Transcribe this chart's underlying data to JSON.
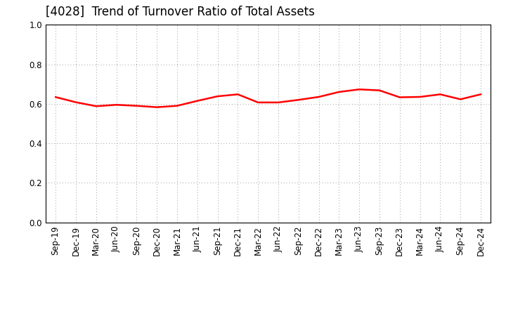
{
  "title": "[4028]  Trend of Turnover Ratio of Total Assets",
  "x_labels": [
    "Sep-19",
    "Dec-19",
    "Mar-20",
    "Jun-20",
    "Sep-20",
    "Dec-20",
    "Mar-21",
    "Jun-21",
    "Sep-21",
    "Dec-21",
    "Mar-22",
    "Jun-22",
    "Sep-22",
    "Dec-22",
    "Mar-23",
    "Jun-23",
    "Sep-23",
    "Dec-23",
    "Mar-24",
    "Jun-24",
    "Sep-24",
    "Dec-24"
  ],
  "values": [
    0.634,
    0.608,
    0.588,
    0.595,
    0.59,
    0.583,
    0.59,
    0.615,
    0.638,
    0.648,
    0.607,
    0.607,
    0.62,
    0.635,
    0.66,
    0.673,
    0.668,
    0.633,
    0.635,
    0.648,
    0.623,
    0.648
  ],
  "line_color": "#ff0000",
  "line_width": 1.8,
  "ylim": [
    0.0,
    1.0
  ],
  "yticks": [
    0.0,
    0.2,
    0.4,
    0.6,
    0.8,
    1.0
  ],
  "background_color": "#ffffff",
  "grid_color": "#999999",
  "title_fontsize": 12,
  "tick_fontsize": 8.5
}
